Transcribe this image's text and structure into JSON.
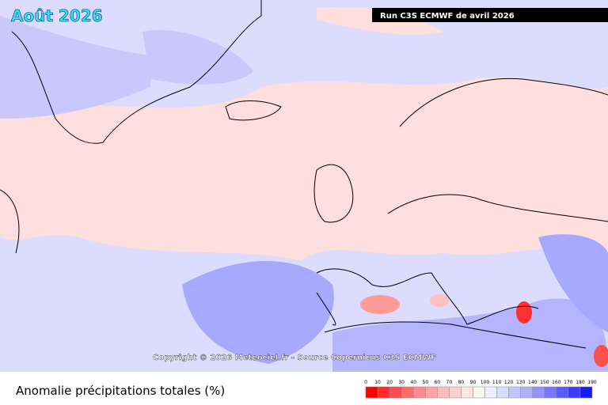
{
  "header": {
    "title": "Août 2026",
    "run": "Run C3S ECMWF de avril 2026"
  },
  "map": {
    "credit": "Copyright © 2026 Meteociel.fr - Source Copernicus C3S ECMWF"
  },
  "legend": {
    "title": "Anomalie précipitations totales (%)",
    "ticks": [
      0,
      10,
      20,
      30,
      40,
      50,
      60,
      70,
      80,
      90,
      100,
      110,
      120,
      130,
      140,
      150,
      160,
      170,
      180,
      190
    ],
    "colors": [
      "#ff0000",
      "#ff2a2a",
      "#ff4a4a",
      "#ff6a6a",
      "#ff8a8a",
      "#ffa4a4",
      "#ffbcbc",
      "#ffd0d0",
      "#ffe4e4",
      "#fff4f4",
      "#eeeeff",
      "#dcdcff",
      "#c6c6ff",
      "#b0b0ff",
      "#9494ff",
      "#7878ff",
      "#5a5aff",
      "#3a3aff",
      "#1a1aff"
    ]
  }
}
